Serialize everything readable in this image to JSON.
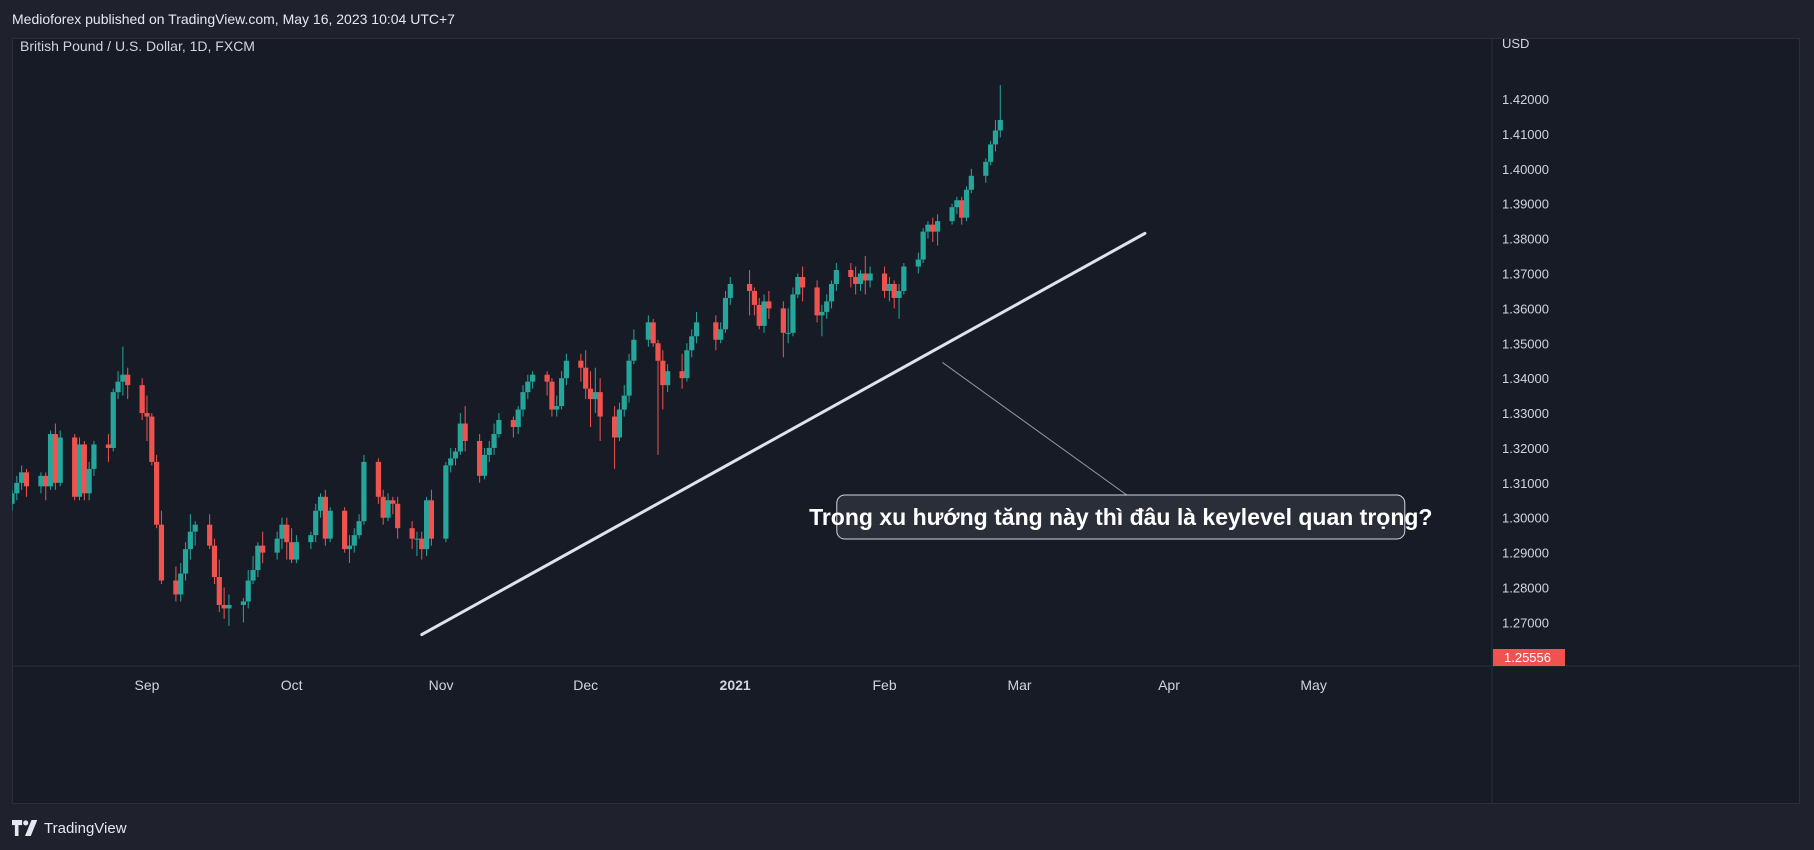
{
  "header": {
    "published": "Medioforex published on TradingView.com, May 16, 2023 10:04 UTC+7"
  },
  "footer": {
    "brand": "TradingView",
    "logo_icon": "tradingview-logo-icon"
  },
  "colors": {
    "up": "#26a69a",
    "down": "#ef5350",
    "background": "#171b26",
    "price_tag": "#ef5350",
    "trendline": "#e0e3eb"
  },
  "chart_data": {
    "type": "candlestick",
    "symbol": "British Pound / U.S. Dollar, 1D, FXCM",
    "currency": "USD",
    "ylim": [
      1.2575,
      1.4375
    ],
    "yticks": [
      "1.42000",
      "1.41000",
      "1.40000",
      "1.39000",
      "1.38000",
      "1.37000",
      "1.36000",
      "1.35000",
      "1.34000",
      "1.33000",
      "1.32000",
      "1.31000",
      "1.30000",
      "1.29000",
      "1.28000",
      "1.27000"
    ],
    "last_price_label": "1.25556",
    "xlim": [
      "2020-08-04",
      "2021-06-07"
    ],
    "xticks": [
      {
        "label": "Sep",
        "date": "2020-09-01",
        "bold": false
      },
      {
        "label": "Oct",
        "date": "2020-10-01",
        "bold": false
      },
      {
        "label": "Nov",
        "date": "2020-11-01",
        "bold": false
      },
      {
        "label": "Dec",
        "date": "2020-12-01",
        "bold": false
      },
      {
        "label": "2021",
        "date": "2021-01-01",
        "bold": true
      },
      {
        "label": "Feb",
        "date": "2021-02-01",
        "bold": false
      },
      {
        "label": "Mar",
        "date": "2021-03-01",
        "bold": false
      },
      {
        "label": "Apr",
        "date": "2021-04-01",
        "bold": false
      },
      {
        "label": "May",
        "date": "2021-05-01",
        "bold": false
      }
    ],
    "candles": [
      [
        "2020-08-04",
        1.304,
        1.307,
        1.302,
        1.308
      ],
      [
        "2020-08-05",
        1.307,
        1.31,
        1.305,
        1.312
      ],
      [
        "2020-08-06",
        1.31,
        1.313,
        1.308,
        1.315
      ],
      [
        "2020-08-07",
        1.313,
        1.309,
        1.306,
        1.314
      ],
      [
        "2020-08-10",
        1.309,
        1.312,
        1.307,
        1.313
      ],
      [
        "2020-08-11",
        1.312,
        1.309,
        1.305,
        1.313
      ],
      [
        "2020-08-12",
        1.309,
        1.324,
        1.308,
        1.325
      ],
      [
        "2020-08-13",
        1.324,
        1.31,
        1.308,
        1.327
      ],
      [
        "2020-08-14",
        1.31,
        1.323,
        1.309,
        1.325
      ],
      [
        "2020-08-17",
        1.323,
        1.306,
        1.305,
        1.324
      ],
      [
        "2020-08-18",
        1.306,
        1.321,
        1.305,
        1.323
      ],
      [
        "2020-08-19",
        1.321,
        1.307,
        1.305,
        1.322
      ],
      [
        "2020-08-20",
        1.307,
        1.314,
        1.305,
        1.316
      ],
      [
        "2020-08-21",
        1.314,
        1.321,
        1.312,
        1.322
      ],
      [
        "2020-08-24",
        1.321,
        1.32,
        1.316,
        1.324
      ],
      [
        "2020-08-25",
        1.32,
        1.336,
        1.319,
        1.337
      ],
      [
        "2020-08-26",
        1.336,
        1.339,
        1.334,
        1.342
      ],
      [
        "2020-08-27",
        1.339,
        1.341,
        1.335,
        1.349
      ],
      [
        "2020-08-28",
        1.341,
        1.338,
        1.334,
        1.343
      ],
      [
        "2020-08-31",
        1.338,
        1.33,
        1.328,
        1.34
      ],
      [
        "2020-09-01",
        1.33,
        1.329,
        1.322,
        1.335
      ],
      [
        "2020-09-02",
        1.329,
        1.316,
        1.315,
        1.33
      ],
      [
        "2020-09-03",
        1.316,
        1.298,
        1.297,
        1.318
      ],
      [
        "2020-09-04",
        1.298,
        1.282,
        1.281,
        1.302
      ],
      [
        "2020-09-07",
        1.282,
        1.278,
        1.276,
        1.286
      ],
      [
        "2020-09-08",
        1.278,
        1.284,
        1.276,
        1.287
      ],
      [
        "2020-09-09",
        1.284,
        1.291,
        1.282,
        1.293
      ],
      [
        "2020-09-10",
        1.291,
        1.296,
        1.288,
        1.301
      ],
      [
        "2020-09-11",
        1.296,
        1.298,
        1.292,
        1.299
      ],
      [
        "2020-09-14",
        1.298,
        1.292,
        1.291,
        1.301
      ],
      [
        "2020-09-15",
        1.292,
        1.283,
        1.281,
        1.294
      ],
      [
        "2020-09-16",
        1.283,
        1.275,
        1.273,
        1.288
      ],
      [
        "2020-09-17",
        1.275,
        1.274,
        1.271,
        1.28
      ],
      [
        "2020-09-18",
        1.274,
        1.275,
        1.269,
        1.278
      ],
      [
        "2020-09-21",
        1.275,
        1.276,
        1.27,
        1.277
      ],
      [
        "2020-09-22",
        1.276,
        1.282,
        1.274,
        1.285
      ],
      [
        "2020-09-23",
        1.282,
        1.285,
        1.281,
        1.289
      ],
      [
        "2020-09-24",
        1.285,
        1.292,
        1.283,
        1.293
      ],
      [
        "2020-09-25",
        1.292,
        1.29,
        1.287,
        1.296
      ],
      [
        "2020-09-28",
        1.29,
        1.294,
        1.288,
        1.296
      ],
      [
        "2020-09-29",
        1.294,
        1.298,
        1.291,
        1.3
      ],
      [
        "2020-09-30",
        1.298,
        1.293,
        1.288,
        1.3
      ],
      [
        "2020-10-01",
        1.293,
        1.288,
        1.287,
        1.297
      ],
      [
        "2020-10-02",
        1.288,
        1.293,
        1.287,
        1.295
      ],
      [
        "2020-10-05",
        1.293,
        1.295,
        1.291,
        1.296
      ],
      [
        "2020-10-06",
        1.295,
        1.302,
        1.293,
        1.304
      ],
      [
        "2020-10-07",
        1.302,
        1.306,
        1.3,
        1.307
      ],
      [
        "2020-10-08",
        1.306,
        1.294,
        1.292,
        1.308
      ],
      [
        "2020-10-09",
        1.294,
        1.302,
        1.293,
        1.303
      ],
      [
        "2020-10-12",
        1.302,
        1.291,
        1.29,
        1.303
      ],
      [
        "2020-10-13",
        1.291,
        1.292,
        1.287,
        1.295
      ],
      [
        "2020-10-14",
        1.292,
        1.295,
        1.29,
        1.297
      ],
      [
        "2020-10-15",
        1.295,
        1.299,
        1.294,
        1.301
      ],
      [
        "2020-10-16",
        1.299,
        1.316,
        1.298,
        1.318
      ],
      [
        "2020-10-19",
        1.316,
        1.306,
        1.304,
        1.317
      ],
      [
        "2020-10-20",
        1.306,
        1.3,
        1.298,
        1.308
      ],
      [
        "2020-10-21",
        1.3,
        1.305,
        1.299,
        1.307
      ],
      [
        "2020-10-22",
        1.305,
        1.304,
        1.301,
        1.306
      ],
      [
        "2020-10-23",
        1.304,
        1.297,
        1.294,
        1.306
      ],
      [
        "2020-10-26",
        1.297,
        1.294,
        1.291,
        1.299
      ],
      [
        "2020-10-27",
        1.294,
        1.294,
        1.289,
        1.296
      ],
      [
        "2020-10-28",
        1.294,
        1.291,
        1.288,
        1.296
      ],
      [
        "2020-10-29",
        1.291,
        1.305,
        1.289,
        1.306
      ],
      [
        "2020-10-30",
        1.305,
        1.294,
        1.292,
        1.308
      ],
      [
        "2020-11-02",
        1.294,
        1.315,
        1.293,
        1.316
      ],
      [
        "2020-11-03",
        1.315,
        1.317,
        1.313,
        1.32
      ],
      [
        "2020-11-04",
        1.317,
        1.319,
        1.315,
        1.32
      ],
      [
        "2020-11-05",
        1.319,
        1.327,
        1.318,
        1.33
      ],
      [
        "2020-11-06",
        1.327,
        1.322,
        1.319,
        1.332
      ],
      [
        "2020-11-09",
        1.322,
        1.312,
        1.31,
        1.324
      ],
      [
        "2020-11-10",
        1.312,
        1.318,
        1.311,
        1.32
      ],
      [
        "2020-11-11",
        1.318,
        1.32,
        1.316,
        1.322
      ],
      [
        "2020-11-12",
        1.32,
        1.324,
        1.318,
        1.327
      ],
      [
        "2020-11-13",
        1.324,
        1.328,
        1.323,
        1.33
      ],
      [
        "2020-11-16",
        1.328,
        1.326,
        1.323,
        1.329
      ],
      [
        "2020-11-17",
        1.326,
        1.331,
        1.324,
        1.332
      ],
      [
        "2020-11-18",
        1.331,
        1.336,
        1.329,
        1.338
      ],
      [
        "2020-11-19",
        1.336,
        1.339,
        1.334,
        1.341
      ],
      [
        "2020-11-20",
        1.339,
        1.341,
        1.337,
        1.342
      ],
      [
        "2020-11-23",
        1.341,
        1.339,
        1.335,
        1.342
      ],
      [
        "2020-11-24",
        1.339,
        1.331,
        1.329,
        1.34
      ],
      [
        "2020-11-25",
        1.331,
        1.332,
        1.329,
        1.335
      ],
      [
        "2020-11-26",
        1.332,
        1.34,
        1.331,
        1.342
      ],
      [
        "2020-11-27",
        1.34,
        1.345,
        1.338,
        1.347
      ],
      [
        "2020-11-30",
        1.345,
        1.343,
        1.339,
        1.347
      ],
      [
        "2020-12-01",
        1.343,
        1.337,
        1.334,
        1.348
      ],
      [
        "2020-12-02",
        1.337,
        1.334,
        1.326,
        1.342
      ],
      [
        "2020-12-03",
        1.334,
        1.336,
        1.33,
        1.343
      ],
      [
        "2020-12-04",
        1.336,
        1.329,
        1.322,
        1.34
      ],
      [
        "2020-12-07",
        1.329,
        1.323,
        1.314,
        1.332
      ],
      [
        "2020-12-08",
        1.323,
        1.331,
        1.322,
        1.333
      ],
      [
        "2020-12-09",
        1.331,
        1.335,
        1.329,
        1.338
      ],
      [
        "2020-12-10",
        1.335,
        1.345,
        1.333,
        1.347
      ],
      [
        "2020-12-11",
        1.345,
        1.351,
        1.344,
        1.354
      ],
      [
        "2020-12-14",
        1.351,
        1.356,
        1.349,
        1.358
      ],
      [
        "2020-12-15",
        1.356,
        1.35,
        1.349,
        1.357
      ],
      [
        "2020-12-16",
        1.35,
        1.345,
        1.318,
        1.351
      ],
      [
        "2020-12-17",
        1.345,
        1.338,
        1.331,
        1.348
      ],
      [
        "2020-12-18",
        1.338,
        1.342,
        1.336,
        1.344
      ],
      [
        "2020-12-21",
        1.342,
        1.34,
        1.337,
        1.347
      ],
      [
        "2020-12-22",
        1.34,
        1.348,
        1.339,
        1.35
      ],
      [
        "2020-12-23",
        1.348,
        1.352,
        1.346,
        1.354
      ],
      [
        "2020-12-24",
        1.352,
        1.356,
        1.35,
        1.359
      ],
      [
        "2020-12-28",
        1.356,
        1.351,
        1.348,
        1.358
      ],
      [
        "2020-12-29",
        1.351,
        1.354,
        1.35,
        1.356
      ],
      [
        "2020-12-30",
        1.354,
        1.363,
        1.353,
        1.365
      ],
      [
        "2020-12-31",
        1.363,
        1.367,
        1.361,
        1.369
      ],
      [
        "2021-01-04",
        1.367,
        1.365,
        1.358,
        1.371
      ],
      [
        "2021-01-05",
        1.365,
        1.361,
        1.358,
        1.366
      ],
      [
        "2021-01-06",
        1.361,
        1.355,
        1.354,
        1.363
      ],
      [
        "2021-01-07",
        1.355,
        1.362,
        1.353,
        1.364
      ],
      [
        "2021-01-08",
        1.362,
        1.36,
        1.357,
        1.365
      ],
      [
        "2021-01-11",
        1.36,
        1.353,
        1.346,
        1.362
      ],
      [
        "2021-01-12",
        1.353,
        1.353,
        1.35,
        1.36
      ],
      [
        "2021-01-13",
        1.353,
        1.364,
        1.352,
        1.366
      ],
      [
        "2021-01-14",
        1.364,
        1.369,
        1.363,
        1.37
      ],
      [
        "2021-01-15",
        1.369,
        1.366,
        1.362,
        1.372
      ],
      [
        "2021-01-18",
        1.366,
        1.358,
        1.356,
        1.368
      ],
      [
        "2021-01-19",
        1.358,
        1.359,
        1.352,
        1.361
      ],
      [
        "2021-01-20",
        1.359,
        1.362,
        1.357,
        1.364
      ],
      [
        "2021-01-21",
        1.362,
        1.367,
        1.36,
        1.368
      ],
      [
        "2021-01-22",
        1.367,
        1.371,
        1.365,
        1.373
      ],
      [
        "2021-01-25",
        1.371,
        1.369,
        1.366,
        1.373
      ],
      [
        "2021-01-26",
        1.369,
        1.367,
        1.364,
        1.372
      ],
      [
        "2021-01-27",
        1.367,
        1.37,
        1.365,
        1.371
      ],
      [
        "2021-01-28",
        1.37,
        1.368,
        1.364,
        1.375
      ],
      [
        "2021-01-29",
        1.368,
        1.37,
        1.366,
        1.372
      ],
      [
        "2021-02-01",
        1.37,
        1.365,
        1.363,
        1.372
      ],
      [
        "2021-02-02",
        1.365,
        1.367,
        1.362,
        1.369
      ],
      [
        "2021-02-03",
        1.367,
        1.363,
        1.36,
        1.368
      ],
      [
        "2021-02-04",
        1.363,
        1.365,
        1.357,
        1.367
      ],
      [
        "2021-02-05",
        1.365,
        1.372,
        1.364,
        1.373
      ],
      [
        "2021-02-08",
        1.372,
        1.374,
        1.37,
        1.376
      ],
      [
        "2021-02-09",
        1.374,
        1.382,
        1.373,
        1.383
      ],
      [
        "2021-02-10",
        1.382,
        1.384,
        1.38,
        1.385
      ],
      [
        "2021-02-11",
        1.384,
        1.382,
        1.379,
        1.386
      ],
      [
        "2021-02-12",
        1.382,
        1.385,
        1.378,
        1.387
      ],
      [
        "2021-02-15",
        1.385,
        1.389,
        1.384,
        1.39
      ],
      [
        "2021-02-16",
        1.389,
        1.391,
        1.387,
        1.392
      ],
      [
        "2021-02-17",
        1.391,
        1.386,
        1.384,
        1.392
      ],
      [
        "2021-02-18",
        1.386,
        1.394,
        1.385,
        1.395
      ],
      [
        "2021-02-19",
        1.394,
        1.398,
        1.393,
        1.4
      ],
      [
        "2021-02-22",
        1.398,
        1.402,
        1.396,
        1.403
      ],
      [
        "2021-02-23",
        1.402,
        1.407,
        1.401,
        1.408
      ],
      [
        "2021-02-24",
        1.407,
        1.411,
        1.405,
        1.414
      ],
      [
        "2021-02-25",
        1.411,
        1.414,
        1.409,
        1.424
      ]
    ],
    "trendline": {
      "start": [
        "2020-10-28",
        1.2665
      ],
      "end": [
        "2021-03-27",
        1.3815
      ]
    },
    "annotation": {
      "text": "Trong xu hướng tăng này thì đâu là keylevel quan trọng?",
      "anchor": [
        "2021-02-13",
        1.3445
      ],
      "box_center": [
        "2021-03-22",
        1.3002
      ]
    }
  }
}
